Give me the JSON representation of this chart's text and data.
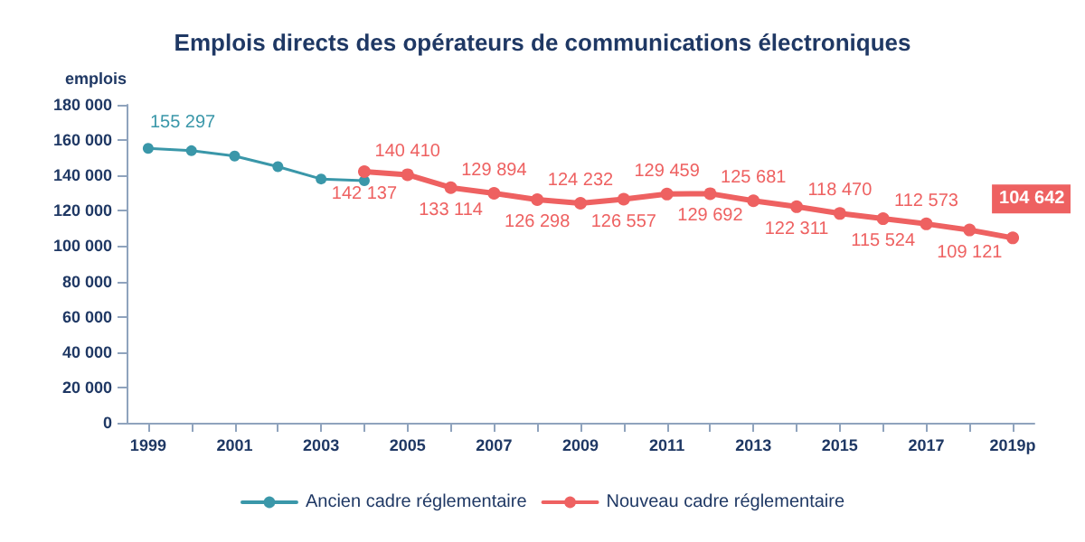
{
  "chart_data": {
    "type": "line",
    "title": "Emplois directs des opérateurs de communications électroniques",
    "ylabel": "emplois",
    "categories": [
      "1999",
      null,
      "2001",
      null,
      "2003",
      null,
      "2005",
      null,
      "2007",
      null,
      "2009",
      null,
      "2011",
      null,
      "2013",
      null,
      "2015",
      null,
      "2017",
      null,
      "2019p"
    ],
    "series": [
      {
        "name": "Ancien cadre réglementaire",
        "color": "#3a97a9",
        "values": [
          155297,
          154000,
          151000,
          145000,
          138000,
          137000,
          null,
          null,
          null,
          null,
          null,
          null,
          null,
          null,
          null,
          null,
          null,
          null,
          null,
          null,
          null
        ],
        "value_labels": [
          "155 297",
          null,
          null,
          null,
          null,
          null,
          null,
          null,
          null,
          null,
          null,
          null,
          null,
          null,
          null,
          null,
          null,
          null,
          null,
          null,
          null
        ]
      },
      {
        "name": "Nouveau cadre réglementaire",
        "color": "#ee6161",
        "values": [
          null,
          null,
          null,
          null,
          null,
          142137,
          140410,
          133114,
          129894,
          126298,
          124232,
          126557,
          129459,
          129692,
          125681,
          122311,
          118470,
          115524,
          112573,
          109121,
          104642
        ],
        "value_labels": [
          null,
          null,
          null,
          null,
          null,
          "142 137",
          "140 410",
          "133 114",
          "129 894",
          "126 298",
          "124 232",
          "126 557",
          "129 459",
          "129 692",
          "125 681",
          "122 311",
          "118 470",
          "115 524",
          "112 573",
          "109 121",
          "104 642"
        ]
      }
    ],
    "ylim": [
      0,
      180000
    ],
    "yticks": [
      0,
      20000,
      40000,
      60000,
      80000,
      100000,
      120000,
      140000,
      160000,
      180000
    ],
    "grid": false,
    "legend": "bottom",
    "marker": "circle",
    "line_style": "solid"
  }
}
